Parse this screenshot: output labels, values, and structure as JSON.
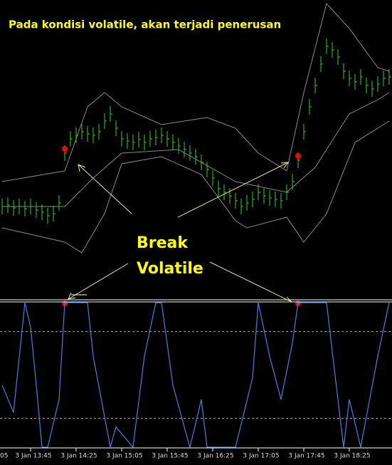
{
  "chart_data": [
    {
      "type": "ohlc",
      "title": "Pada kondisi volatile, akan terjadi penerusan",
      "annotations": [
        "Break",
        "Volatile"
      ],
      "color": "#33cc33",
      "band_color": "#8a8a8a",
      "signal_color": "#ff0000",
      "ylim": [
        0,
        420
      ],
      "values": [
        130,
        132,
        128,
        130,
        127,
        130,
        125,
        122,
        117,
        120,
        135,
        205,
        225,
        230,
        235,
        232,
        230,
        235,
        250,
        260,
        240,
        225,
        222,
        220,
        224,
        220,
        225,
        227,
        230,
        225,
        220,
        215,
        210,
        205,
        200,
        192,
        182,
        170,
        155,
        150,
        145,
        138,
        130,
        135,
        140,
        150,
        145,
        142,
        140,
        138,
        150,
        165,
        195,
        235,
        270,
        300,
        330,
        355,
        350,
        340,
        320,
        310,
        305,
        312,
        300,
        295,
        302,
        310,
        312
      ],
      "signals": [
        11,
        52
      ],
      "bands": [
        {
          "x": [
            0,
            11,
            15,
            18,
            21,
            28,
            36,
            41,
            45,
            50,
            53,
            57,
            61,
            66,
            68
          ],
          "values": [
            165,
            180,
            270,
            290,
            270,
            245,
            255,
            240,
            205,
            180,
            290,
            415,
            380,
            325,
            320
          ]
        },
        {
          "x": [
            0,
            11,
            16,
            21,
            31,
            41,
            50,
            55,
            61,
            66,
            68
          ],
          "values": [
            130,
            130,
            170,
            205,
            210,
            165,
            150,
            185,
            260,
            280,
            290
          ]
        },
        {
          "x": [
            0,
            11,
            14,
            18,
            21,
            28,
            35,
            41,
            43,
            50,
            53,
            57,
            62,
            68
          ],
          "values": [
            100,
            80,
            65,
            120,
            190,
            200,
            175,
            110,
            100,
            115,
            80,
            120,
            220,
            250
          ]
        }
      ]
    },
    {
      "type": "line",
      "color": "#4a7fe0",
      "level_color": "#aaaaaa",
      "ylim": [
        0,
        100
      ],
      "levels": [
        80,
        20
      ],
      "x": [
        0,
        2,
        4,
        5,
        6,
        7,
        8,
        10,
        11,
        15,
        16,
        19,
        20,
        23,
        25,
        27,
        28,
        30,
        32,
        33,
        35,
        36,
        37,
        41,
        44,
        45,
        47,
        49,
        51,
        52,
        57,
        59,
        60,
        61,
        63,
        66,
        68
      ],
      "values": [
        43,
        24,
        100,
        83,
        43,
        0,
        0,
        33,
        100,
        100,
        63,
        0,
        14,
        0,
        63,
        100,
        100,
        43,
        14,
        0,
        33,
        0,
        0,
        0,
        48,
        100,
        63,
        33,
        72,
        100,
        100,
        33,
        0,
        33,
        0,
        63,
        100
      ],
      "xticks": [
        {
          "value": -1,
          "label": "05"
        },
        {
          "value": 5,
          "label": "3 Jan 13:45"
        },
        {
          "value": 13,
          "label": "3 Jan 14:25"
        },
        {
          "value": 21,
          "label": "3 Jan 15:05"
        },
        {
          "value": 29,
          "label": "3 Jan 15:45"
        },
        {
          "value": 37,
          "label": "3 Jan 16:25"
        },
        {
          "value": 45,
          "label": "3 Jan 17:05"
        },
        {
          "value": 53,
          "label": "3 Jan 17:45"
        },
        {
          "value": 61,
          "label": "3 Jan 18:25"
        }
      ]
    }
  ]
}
